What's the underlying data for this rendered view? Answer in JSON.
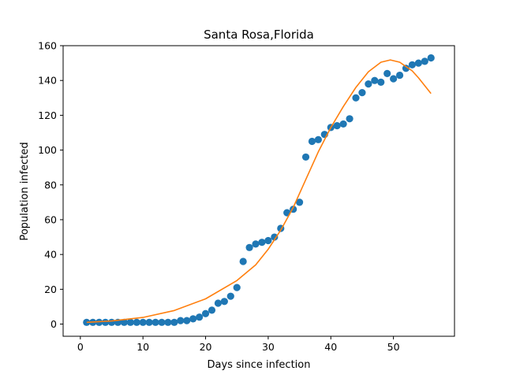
{
  "chart_data": {
    "type": "scatter",
    "title": "Santa Rosa,Florida",
    "xlabel": "Days since infection",
    "ylabel": "Population infected",
    "xlim": [
      -2.75,
      59.75
    ],
    "ylim": [
      -7,
      160
    ],
    "xticks": [
      0,
      10,
      20,
      30,
      40,
      50
    ],
    "yticks": [
      0,
      20,
      40,
      60,
      80,
      100,
      120,
      140,
      160
    ],
    "grid": false,
    "series": [
      {
        "kind": "scatter",
        "color": "#1f77b4",
        "x": [
          1,
          2,
          3,
          4,
          5,
          6,
          7,
          8,
          9,
          10,
          11,
          12,
          13,
          14,
          15,
          16,
          17,
          18,
          19,
          20,
          21,
          22,
          23,
          24,
          25,
          26,
          27,
          28,
          29,
          30,
          31,
          32,
          33,
          34,
          35,
          36,
          37,
          38,
          39,
          40,
          41,
          42,
          43,
          44,
          45,
          46,
          47,
          48,
          49,
          50,
          51,
          52,
          53,
          54,
          55,
          56
        ],
        "y": [
          1,
          1,
          1,
          1,
          1,
          1,
          1,
          1,
          1,
          1,
          1,
          1,
          1,
          1,
          1,
          2,
          2,
          3,
          4,
          6,
          8,
          12,
          13,
          16,
          21,
          36,
          44,
          46,
          47,
          48,
          50,
          55,
          64,
          66,
          70,
          96,
          105,
          106,
          109,
          113,
          114,
          115,
          118,
          130,
          133,
          138,
          140,
          139,
          144,
          141,
          143,
          147,
          149,
          150,
          151,
          153
        ]
      },
      {
        "kind": "line",
        "color": "#ff7f0e",
        "x": [
          1,
          5,
          10,
          15,
          20,
          25,
          28,
          30,
          32,
          34,
          36,
          38,
          40,
          42,
          44,
          46,
          48,
          49.5,
          51,
          53,
          54,
          56
        ],
        "y": [
          1,
          1.8,
          3.8,
          7.8,
          14.5,
          25,
          34,
          43,
          54,
          67,
          83,
          99,
          113,
          125,
          136,
          145,
          150.5,
          151.8,
          150.5,
          145.5,
          141.5,
          132.5
        ]
      }
    ]
  }
}
